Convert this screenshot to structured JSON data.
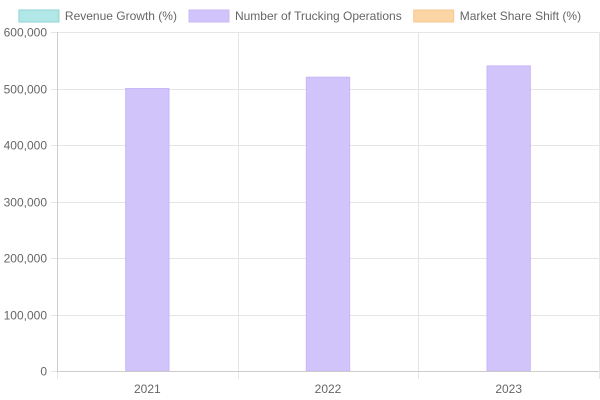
{
  "chart_data": {
    "type": "bar",
    "categories": [
      "2021",
      "2022",
      "2023"
    ],
    "series": [
      {
        "name": "Revenue Growth (%)",
        "values": [
          0,
          0,
          0
        ],
        "fill": "#b2e7e8",
        "stroke": "#8fd3d4"
      },
      {
        "name": "Number of Trucking Operations",
        "values": [
          500000,
          520000,
          540000
        ],
        "fill": "#d1c4fb",
        "stroke": "#c9b8fa"
      },
      {
        "name": "Market Share Shift (%)",
        "values": [
          0,
          0,
          0
        ],
        "fill": "#fcd5a6",
        "stroke": "#f9c891"
      }
    ],
    "ylim": [
      0,
      600000
    ],
    "yticks": [
      {
        "value": 0,
        "label": "0"
      },
      {
        "value": 100000,
        "label": "100,000"
      },
      {
        "value": 200000,
        "label": "200,000"
      },
      {
        "value": 300000,
        "label": "300,000"
      },
      {
        "value": 400000,
        "label": "400,000"
      },
      {
        "value": 500000,
        "label": "500,000"
      },
      {
        "value": 600000,
        "label": "600,000"
      }
    ],
    "grid": true,
    "legend_position": "top"
  }
}
